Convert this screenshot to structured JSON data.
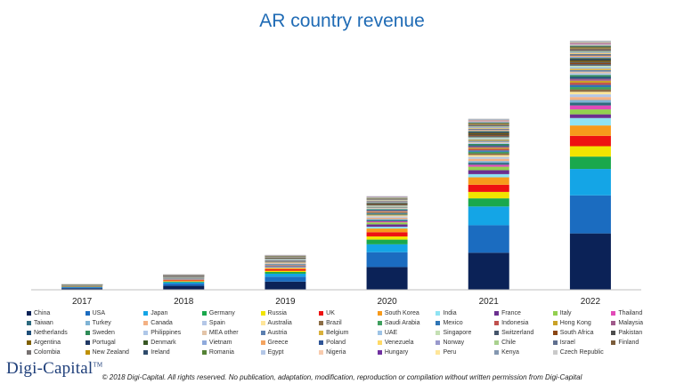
{
  "chart_data": {
    "type": "bar",
    "stacked": true,
    "title": "AR country revenue",
    "categories": [
      "2017",
      "2018",
      "2019",
      "2020",
      "2021",
      "2022"
    ],
    "xlabel": "",
    "ylabel": "",
    "ylim": [
      0,
      100
    ],
    "grid": false,
    "legend_position": "bottom",
    "series": [
      {
        "name": "China",
        "color": "#0b2257",
        "values": [
          0.6,
          1.6,
          3.3,
          9.2,
          15.0,
          22.8
        ]
      },
      {
        "name": "USA",
        "color": "#1b6cc0",
        "values": [
          0.4,
          0.9,
          2.0,
          6.0,
          11.1,
          15.4
        ]
      },
      {
        "name": "Japan",
        "color": "#14a5e6",
        "values": [
          0.2,
          0.5,
          1.2,
          3.2,
          7.6,
          10.7
        ]
      },
      {
        "name": "Germany",
        "color": "#1aa84c",
        "values": [
          0.1,
          0.3,
          0.7,
          1.9,
          3.3,
          5.0
        ]
      },
      {
        "name": "Russia",
        "color": "#f2e400",
        "values": [
          0.06,
          0.2,
          0.5,
          1.3,
          2.6,
          4.2
        ]
      },
      {
        "name": "UK",
        "color": "#ee1111",
        "values": [
          0.1,
          0.3,
          0.6,
          1.7,
          2.9,
          4.2
        ]
      },
      {
        "name": "South Korea",
        "color": "#f79a1b",
        "values": [
          0.1,
          0.3,
          0.6,
          1.5,
          3.0,
          4.2
        ]
      },
      {
        "name": "India",
        "color": "#8fe3f3",
        "values": [
          0.05,
          0.1,
          0.3,
          0.7,
          1.3,
          3.0
        ]
      },
      {
        "name": "France",
        "color": "#6b2f8f",
        "values": [
          0.05,
          0.2,
          0.4,
          1.0,
          1.6,
          1.5
        ]
      },
      {
        "name": "Italy",
        "color": "#93d050",
        "values": [
          0.05,
          0.1,
          0.3,
          0.8,
          1.4,
          2.0
        ]
      },
      {
        "name": "Thailand",
        "color": "#e24bb8",
        "values": [
          0.02,
          0.06,
          0.2,
          0.4,
          0.8,
          1.6
        ]
      },
      {
        "name": "Taiwan",
        "color": "#2d6a7e",
        "values": [
          0.03,
          0.08,
          0.2,
          0.5,
          0.8,
          1.2
        ]
      },
      {
        "name": "Turkey",
        "color": "#7fb3d5",
        "values": [
          0.02,
          0.06,
          0.15,
          0.4,
          0.7,
          1.0
        ]
      },
      {
        "name": "Canada",
        "color": "#f4b183",
        "values": [
          0.03,
          0.1,
          0.2,
          0.6,
          0.9,
          1.2
        ]
      },
      {
        "name": "Spain",
        "color": "#b4c7e7",
        "values": [
          0.03,
          0.08,
          0.2,
          0.5,
          0.8,
          1.1
        ]
      },
      {
        "name": "Australia",
        "color": "#ffe699",
        "values": [
          0.02,
          0.06,
          0.15,
          0.4,
          0.7,
          1.0
        ]
      },
      {
        "name": "Brazil",
        "color": "#8c6d46",
        "values": [
          0.02,
          0.06,
          0.15,
          0.4,
          0.7,
          1.0
        ]
      },
      {
        "name": "Saudi Arabia",
        "color": "#3f9f5e",
        "values": [
          0.02,
          0.05,
          0.12,
          0.3,
          0.6,
          0.9
        ]
      },
      {
        "name": "Mexico",
        "color": "#2e75b6",
        "values": [
          0.02,
          0.05,
          0.12,
          0.3,
          0.6,
          0.9
        ]
      },
      {
        "name": "Indonesia",
        "color": "#c0504d",
        "values": [
          0.02,
          0.05,
          0.12,
          0.3,
          0.6,
          0.9
        ]
      },
      {
        "name": "Hong Kong",
        "color": "#c9a227",
        "values": [
          0.02,
          0.05,
          0.12,
          0.3,
          0.5,
          0.8
        ]
      },
      {
        "name": "Malaysia",
        "color": "#a05a8b",
        "values": [
          0.02,
          0.05,
          0.1,
          0.3,
          0.5,
          0.8
        ]
      },
      {
        "name": "Netherlands",
        "color": "#1f4e79",
        "values": [
          0.02,
          0.05,
          0.12,
          0.3,
          0.5,
          0.8
        ]
      },
      {
        "name": "Sweden",
        "color": "#2e8b57",
        "values": [
          0.02,
          0.05,
          0.1,
          0.3,
          0.5,
          0.7
        ]
      },
      {
        "name": "Philippines",
        "color": "#aec7e8",
        "values": [
          0.01,
          0.04,
          0.1,
          0.25,
          0.45,
          0.7
        ]
      },
      {
        "name": "MEA other",
        "color": "#e3c4a8",
        "values": [
          0.01,
          0.04,
          0.1,
          0.25,
          0.45,
          0.7
        ]
      },
      {
        "name": "Austria",
        "color": "#5b7fb0",
        "values": [
          0.01,
          0.04,
          0.1,
          0.25,
          0.45,
          0.6
        ]
      },
      {
        "name": "Belgium",
        "color": "#d9b03b",
        "values": [
          0.01,
          0.04,
          0.1,
          0.25,
          0.45,
          0.6
        ]
      },
      {
        "name": "UAE",
        "color": "#9dc3e6",
        "values": [
          0.01,
          0.04,
          0.1,
          0.25,
          0.45,
          0.6
        ]
      },
      {
        "name": "Singapore",
        "color": "#c5e0b4",
        "values": [
          0.01,
          0.04,
          0.1,
          0.25,
          0.45,
          0.6
        ]
      },
      {
        "name": "Switzerland",
        "color": "#44546a",
        "values": [
          0.01,
          0.04,
          0.1,
          0.25,
          0.45,
          0.6
        ]
      },
      {
        "name": "South Africa",
        "color": "#8b4513",
        "values": [
          0.01,
          0.03,
          0.08,
          0.2,
          0.4,
          0.5
        ]
      },
      {
        "name": "Pakistan",
        "color": "#4d4d4d",
        "values": [
          0.01,
          0.03,
          0.08,
          0.2,
          0.4,
          0.5
        ]
      },
      {
        "name": "Argentina",
        "color": "#7f6000",
        "values": [
          0.01,
          0.03,
          0.08,
          0.2,
          0.4,
          0.5
        ]
      },
      {
        "name": "Portugal",
        "color": "#203864",
        "values": [
          0.01,
          0.03,
          0.08,
          0.2,
          0.4,
          0.5
        ]
      },
      {
        "name": "Denmark",
        "color": "#385723",
        "values": [
          0.01,
          0.03,
          0.08,
          0.2,
          0.4,
          0.5
        ]
      },
      {
        "name": "Vietnam",
        "color": "#8faadc",
        "values": [
          0.01,
          0.03,
          0.08,
          0.2,
          0.35,
          0.5
        ]
      },
      {
        "name": "Greece",
        "color": "#f4a460",
        "values": [
          0.01,
          0.03,
          0.08,
          0.2,
          0.35,
          0.5
        ]
      },
      {
        "name": "Poland",
        "color": "#2f5597",
        "values": [
          0.01,
          0.03,
          0.08,
          0.2,
          0.35,
          0.5
        ]
      },
      {
        "name": "Venezuela",
        "color": "#ffd966",
        "values": [
          0.01,
          0.03,
          0.06,
          0.15,
          0.3,
          0.4
        ]
      },
      {
        "name": "Norway",
        "color": "#9999cc",
        "values": [
          0.01,
          0.03,
          0.06,
          0.15,
          0.3,
          0.4
        ]
      },
      {
        "name": "Chile",
        "color": "#a9d18e",
        "values": [
          0.01,
          0.03,
          0.06,
          0.15,
          0.3,
          0.4
        ]
      },
      {
        "name": "Israel",
        "color": "#5f6f8f",
        "values": [
          0.01,
          0.03,
          0.06,
          0.15,
          0.3,
          0.4
        ]
      },
      {
        "name": "Finland",
        "color": "#7b5c3a",
        "values": [
          0.01,
          0.03,
          0.06,
          0.15,
          0.3,
          0.4
        ]
      },
      {
        "name": "Colombia",
        "color": "#767171",
        "values": [
          0.01,
          0.03,
          0.06,
          0.15,
          0.3,
          0.4
        ]
      },
      {
        "name": "New Zealand",
        "color": "#bf9000",
        "values": [
          0.01,
          0.02,
          0.05,
          0.12,
          0.25,
          0.35
        ]
      },
      {
        "name": "Ireland",
        "color": "#2e4a6b",
        "values": [
          0.01,
          0.02,
          0.05,
          0.12,
          0.25,
          0.35
        ]
      },
      {
        "name": "Romania",
        "color": "#548235",
        "values": [
          0.01,
          0.02,
          0.05,
          0.12,
          0.25,
          0.35
        ]
      },
      {
        "name": "Egypt",
        "color": "#b4c7e7",
        "values": [
          0.01,
          0.02,
          0.05,
          0.12,
          0.25,
          0.35
        ]
      },
      {
        "name": "Nigeria",
        "color": "#f8cbad",
        "values": [
          0.01,
          0.02,
          0.05,
          0.12,
          0.25,
          0.35
        ]
      },
      {
        "name": "Hungary",
        "color": "#7030a0",
        "values": [
          0.01,
          0.02,
          0.05,
          0.12,
          0.25,
          0.35
        ]
      },
      {
        "name": "Peru",
        "color": "#ffe699",
        "values": [
          0.01,
          0.02,
          0.05,
          0.12,
          0.25,
          0.35
        ]
      },
      {
        "name": "Kenya",
        "color": "#8497b0",
        "values": [
          0.01,
          0.02,
          0.05,
          0.12,
          0.25,
          0.35
        ]
      },
      {
        "name": "Czech Republic",
        "color": "#c9c9c9",
        "values": [
          0.01,
          0.02,
          0.05,
          0.12,
          0.25,
          0.35
        ]
      }
    ]
  },
  "branding": {
    "logo_text": "Digi-Capital",
    "logo_tm": "TM",
    "copyright": "© 2018 Digi-Capital. All rights reserved. No publication, adaptation, modification, reproduction or compilation without written permission from Digi-Capital"
  },
  "colors": {
    "title": "#1f6bb5",
    "axis": "#bfbfbf",
    "logo": "#1f3f7a"
  }
}
